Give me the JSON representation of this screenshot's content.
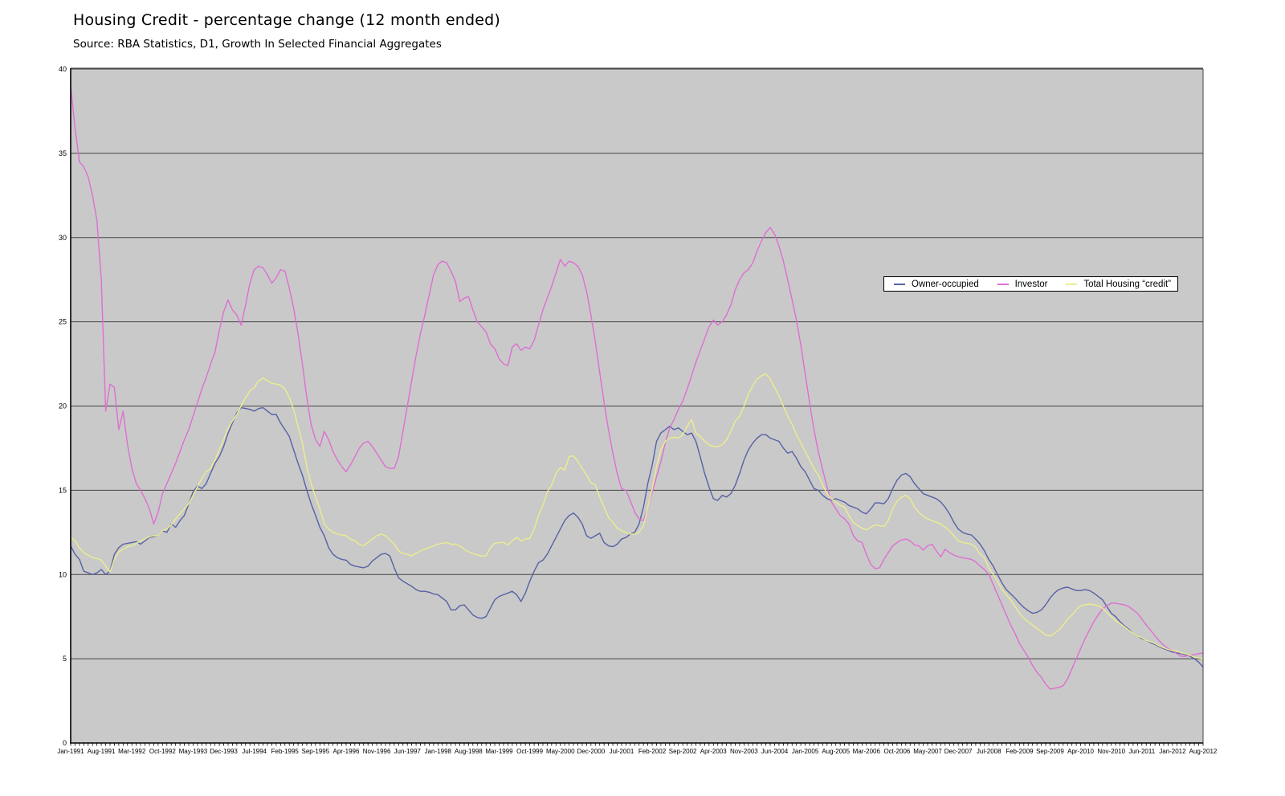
{
  "header": {
    "title": "Housing Credit - percentage change (12 month ended)",
    "source": "Source: RBA Statistics, D1, Growth In Selected Financial Aggregates"
  },
  "colors": {
    "plot_background": "#c9c9c9",
    "gridline": "#454545",
    "axis": "#000000",
    "owner_occupied": "#5661a4",
    "investor": "#de6fd2",
    "total_housing": "#eded8e"
  },
  "chart_data": {
    "type": "line",
    "title": "Housing Credit - percentage change (12 month ended)",
    "xlabel": "",
    "ylabel": "",
    "ylim": [
      0,
      40
    ],
    "yticks": [
      0,
      5,
      10,
      15,
      20,
      25,
      30,
      35,
      40
    ],
    "grid": "horizontal",
    "legend_position": "upper-right-inside",
    "n_months": 260,
    "x_start": "Jan-1991",
    "x_end": "Aug-2012",
    "x_tick_interval_months": 7,
    "x_tick_labels": [
      "Jan-1991",
      "Aug-1991",
      "Mar-1992",
      "Oct-1992",
      "May-1993",
      "Dec-1993",
      "Jul-1994",
      "Feb-1995",
      "Sep-1995",
      "Apr-1996",
      "Nov-1996",
      "Jun-1997",
      "Jan-1998",
      "Aug-1998",
      "Mar-1999",
      "Oct-1999",
      "May-2000",
      "Dec-2000",
      "Jul-2001",
      "Feb-2002",
      "Sep-2002",
      "Apr-2003",
      "Nov-2003",
      "Jun-2004",
      "Jan-2005",
      "Aug-2005",
      "Mar-2006",
      "Oct-2006",
      "May-2007",
      "Dec-2007",
      "Jul-2008",
      "Feb-2009",
      "Sep-2009",
      "Apr-2010",
      "Nov-2010",
      "Jun-2011",
      "Jan-2012",
      "Aug-2012"
    ],
    "series": [
      {
        "name": "Owner-occupied",
        "color": "#5661a4",
        "values": [
          11.7,
          11.2,
          10.9,
          10.2,
          10.1,
          10.0,
          10.1,
          10.3,
          10.0,
          10.2,
          11.2,
          11.6,
          11.8,
          11.85,
          11.9,
          11.95,
          11.8,
          12.0,
          12.2,
          12.25,
          12.3,
          12.6,
          12.5,
          13.0,
          12.8,
          13.2,
          13.5,
          14.2,
          14.9,
          15.25,
          15.1,
          15.4,
          16.0,
          16.6,
          17.0,
          17.6,
          18.4,
          19.0,
          19.6,
          19.9,
          19.85,
          19.8,
          19.7,
          19.85,
          19.9,
          19.7,
          19.5,
          19.5,
          19.0,
          18.6,
          18.2,
          17.4,
          16.6,
          15.9,
          15.0,
          14.2,
          13.5,
          12.8,
          12.3,
          11.6,
          11.2,
          11.0,
          10.9,
          10.85,
          10.6,
          10.5,
          10.45,
          10.4,
          10.5,
          10.8,
          11.0,
          11.2,
          11.25,
          11.1,
          10.4,
          9.8,
          9.6,
          9.45,
          9.3,
          9.1,
          9.0,
          9.0,
          8.95,
          8.85,
          8.8,
          8.6,
          8.4,
          7.9,
          7.9,
          8.15,
          8.2,
          7.9,
          7.6,
          7.45,
          7.4,
          7.5,
          8.0,
          8.5,
          8.7,
          8.8,
          8.9,
          9.0,
          8.8,
          8.4,
          8.9,
          9.6,
          10.2,
          10.7,
          10.85,
          11.2,
          11.7,
          12.2,
          12.7,
          13.2,
          13.5,
          13.65,
          13.4,
          13.0,
          12.3,
          12.15,
          12.3,
          12.45,
          11.9,
          11.7,
          11.65,
          11.8,
          12.1,
          12.2,
          12.4,
          12.5,
          13.0,
          14.0,
          15.4,
          16.5,
          17.9,
          18.4,
          18.6,
          18.8,
          18.6,
          18.7,
          18.5,
          18.3,
          18.4,
          17.9,
          17.0,
          16.0,
          15.2,
          14.5,
          14.4,
          14.7,
          14.6,
          14.8,
          15.3,
          16.0,
          16.8,
          17.4,
          17.8,
          18.1,
          18.3,
          18.3,
          18.1,
          18.0,
          17.9,
          17.5,
          17.2,
          17.3,
          16.9,
          16.4,
          16.1,
          15.6,
          15.1,
          15.0,
          14.7,
          14.5,
          14.4,
          14.5,
          14.4,
          14.3,
          14.1,
          14.0,
          13.9,
          13.7,
          13.6,
          13.9,
          14.25,
          14.25,
          14.2,
          14.5,
          15.1,
          15.6,
          15.9,
          16.0,
          15.8,
          15.4,
          15.1,
          14.8,
          14.7,
          14.6,
          14.5,
          14.3,
          14.0,
          13.6,
          13.1,
          12.7,
          12.5,
          12.4,
          12.35,
          12.1,
          11.8,
          11.4,
          10.9,
          10.5,
          10.0,
          9.5,
          9.1,
          8.85,
          8.6,
          8.3,
          8.05,
          7.85,
          7.7,
          7.75,
          7.9,
          8.2,
          8.6,
          8.9,
          9.1,
          9.2,
          9.25,
          9.15,
          9.05,
          9.05,
          9.1,
          9.05,
          8.9,
          8.7,
          8.5,
          8.1,
          7.7,
          7.5,
          7.2,
          6.95,
          6.75,
          6.5,
          6.35,
          6.2,
          6.1,
          5.95,
          5.85,
          5.7,
          5.6,
          5.5,
          5.4,
          5.35,
          5.3,
          5.25,
          5.15,
          5.0,
          4.8,
          4.5
        ]
      },
      {
        "name": "Investor",
        "color": "#de6fd2",
        "values": [
          39.0,
          36.5,
          34.5,
          34.2,
          33.6,
          32.5,
          31.0,
          27.5,
          19.7,
          21.3,
          21.1,
          18.6,
          19.7,
          17.7,
          16.3,
          15.4,
          15.0,
          14.5,
          13.9,
          13.0,
          13.7,
          14.8,
          15.4,
          16.0,
          16.6,
          17.3,
          18.0,
          18.6,
          19.4,
          20.2,
          21.0,
          21.7,
          22.5,
          23.2,
          24.5,
          25.6,
          26.3,
          25.7,
          25.4,
          24.8,
          26.0,
          27.3,
          28.1,
          28.3,
          28.2,
          27.8,
          27.3,
          27.6,
          28.1,
          28.0,
          27.0,
          25.8,
          24.3,
          22.5,
          20.5,
          18.9,
          18.0,
          17.6,
          18.5,
          18.0,
          17.3,
          16.8,
          16.4,
          16.1,
          16.5,
          17.0,
          17.5,
          17.8,
          17.9,
          17.6,
          17.2,
          16.8,
          16.4,
          16.3,
          16.3,
          17.0,
          18.5,
          20.0,
          21.5,
          23.0,
          24.3,
          25.4,
          26.6,
          27.8,
          28.4,
          28.6,
          28.5,
          28.0,
          27.4,
          26.2,
          26.4,
          26.5,
          25.7,
          25.0,
          24.7,
          24.4,
          23.7,
          23.4,
          22.8,
          22.5,
          22.4,
          23.5,
          23.7,
          23.3,
          23.5,
          23.4,
          23.9,
          24.8,
          25.7,
          26.4,
          27.1,
          27.9,
          28.7,
          28.3,
          28.6,
          28.5,
          28.3,
          27.8,
          26.8,
          25.4,
          23.8,
          22.0,
          20.2,
          18.6,
          17.2,
          16.0,
          15.1,
          15.0,
          14.4,
          13.7,
          13.3,
          13.2,
          14.0,
          14.9,
          15.8,
          16.7,
          17.8,
          18.7,
          19.2,
          19.8,
          20.3,
          21.0,
          21.8,
          22.6,
          23.3,
          24.0,
          24.7,
          25.1,
          24.8,
          25.0,
          25.4,
          26.0,
          26.9,
          27.5,
          27.9,
          28.1,
          28.5,
          29.2,
          29.8,
          30.3,
          30.6,
          30.2,
          29.5,
          28.6,
          27.5,
          26.3,
          25.1,
          23.6,
          21.9,
          20.2,
          18.6,
          17.3,
          16.2,
          15.2,
          14.3,
          13.9,
          13.5,
          13.3,
          13.0,
          12.3,
          12.0,
          11.9,
          11.2,
          10.6,
          10.35,
          10.4,
          10.9,
          11.3,
          11.7,
          11.9,
          12.05,
          12.1,
          12.0,
          11.75,
          11.7,
          11.45,
          11.7,
          11.8,
          11.4,
          11.05,
          11.5,
          11.3,
          11.15,
          11.05,
          11.0,
          10.95,
          10.9,
          10.75,
          10.5,
          10.3,
          10.0,
          9.4,
          8.8,
          8.2,
          7.6,
          7.0,
          6.5,
          5.9,
          5.5,
          5.1,
          4.6,
          4.2,
          3.9,
          3.5,
          3.2,
          3.25,
          3.3,
          3.4,
          3.8,
          4.4,
          5.0,
          5.6,
          6.2,
          6.7,
          7.2,
          7.6,
          7.95,
          8.15,
          8.3,
          8.3,
          8.25,
          8.2,
          8.1,
          7.9,
          7.7,
          7.35,
          7.0,
          6.7,
          6.35,
          6.05,
          5.8,
          5.6,
          5.5,
          5.3,
          5.15,
          5.15,
          5.2,
          5.25,
          5.3,
          5.35
        ]
      },
      {
        "name": "Total Housing “credit”",
        "color": "#eded8e",
        "values": [
          12.2,
          12.0,
          11.6,
          11.3,
          11.15,
          11.0,
          10.95,
          10.85,
          10.5,
          10.15,
          10.9,
          11.35,
          11.5,
          11.65,
          11.7,
          11.85,
          12.0,
          12.1,
          12.25,
          12.3,
          12.3,
          12.6,
          12.7,
          12.95,
          13.3,
          13.6,
          13.9,
          14.2,
          14.7,
          15.2,
          15.7,
          16.1,
          16.3,
          16.8,
          17.4,
          18.0,
          18.7,
          19.1,
          19.5,
          20.0,
          20.5,
          20.9,
          21.1,
          21.5,
          21.65,
          21.5,
          21.35,
          21.3,
          21.25,
          21.0,
          20.5,
          19.8,
          18.8,
          17.8,
          16.4,
          15.4,
          14.6,
          13.9,
          13.0,
          12.7,
          12.5,
          12.4,
          12.35,
          12.3,
          12.1,
          12.0,
          11.8,
          11.7,
          11.9,
          12.1,
          12.3,
          12.4,
          12.3,
          12.05,
          11.8,
          11.4,
          11.25,
          11.2,
          11.1,
          11.25,
          11.4,
          11.5,
          11.6,
          11.7,
          11.8,
          11.85,
          11.9,
          11.8,
          11.8,
          11.7,
          11.5,
          11.35,
          11.25,
          11.15,
          11.1,
          11.1,
          11.6,
          11.85,
          11.9,
          11.9,
          11.75,
          12.0,
          12.2,
          12.0,
          12.1,
          12.15,
          12.7,
          13.5,
          14.1,
          14.9,
          15.3,
          16.0,
          16.35,
          16.2,
          17.0,
          17.05,
          16.7,
          16.3,
          15.9,
          15.45,
          15.3,
          14.6,
          14.0,
          13.4,
          13.1,
          12.75,
          12.6,
          12.5,
          12.4,
          12.4,
          12.5,
          12.9,
          14.0,
          15.1,
          16.4,
          17.4,
          17.9,
          18.1,
          18.15,
          18.1,
          18.3,
          18.8,
          19.2,
          18.4,
          18.2,
          17.9,
          17.7,
          17.6,
          17.6,
          17.7,
          18.0,
          18.5,
          19.1,
          19.4,
          20.0,
          20.7,
          21.2,
          21.6,
          21.8,
          21.9,
          21.6,
          21.1,
          20.6,
          20.0,
          19.4,
          18.9,
          18.3,
          17.8,
          17.3,
          16.8,
          16.3,
          15.9,
          15.3,
          14.8,
          14.5,
          14.3,
          14.1,
          14.0,
          13.5,
          13.1,
          12.9,
          12.75,
          12.65,
          12.8,
          12.95,
          12.9,
          12.85,
          13.2,
          13.9,
          14.35,
          14.6,
          14.7,
          14.5,
          14.0,
          13.7,
          13.45,
          13.3,
          13.2,
          13.1,
          13.0,
          12.8,
          12.6,
          12.3,
          12.0,
          11.9,
          11.85,
          11.8,
          11.6,
          11.2,
          11.0,
          10.4,
          10.0,
          9.6,
          9.1,
          8.8,
          8.5,
          8.1,
          7.7,
          7.4,
          7.2,
          7.0,
          6.8,
          6.6,
          6.4,
          6.35,
          6.5,
          6.7,
          7.0,
          7.35,
          7.6,
          7.9,
          8.15,
          8.2,
          8.25,
          8.2,
          8.15,
          8.0,
          7.75,
          7.5,
          7.25,
          7.1,
          6.9,
          6.7,
          6.5,
          6.35,
          6.25,
          6.1,
          6.0,
          5.9,
          5.75,
          5.65,
          5.55,
          5.5,
          5.45,
          5.35,
          5.3,
          5.2,
          5.1,
          5.05,
          5.0
        ]
      }
    ]
  },
  "legend": {
    "entries": [
      "Owner-occupied",
      "Investor",
      "Total Housing “credit”"
    ]
  }
}
